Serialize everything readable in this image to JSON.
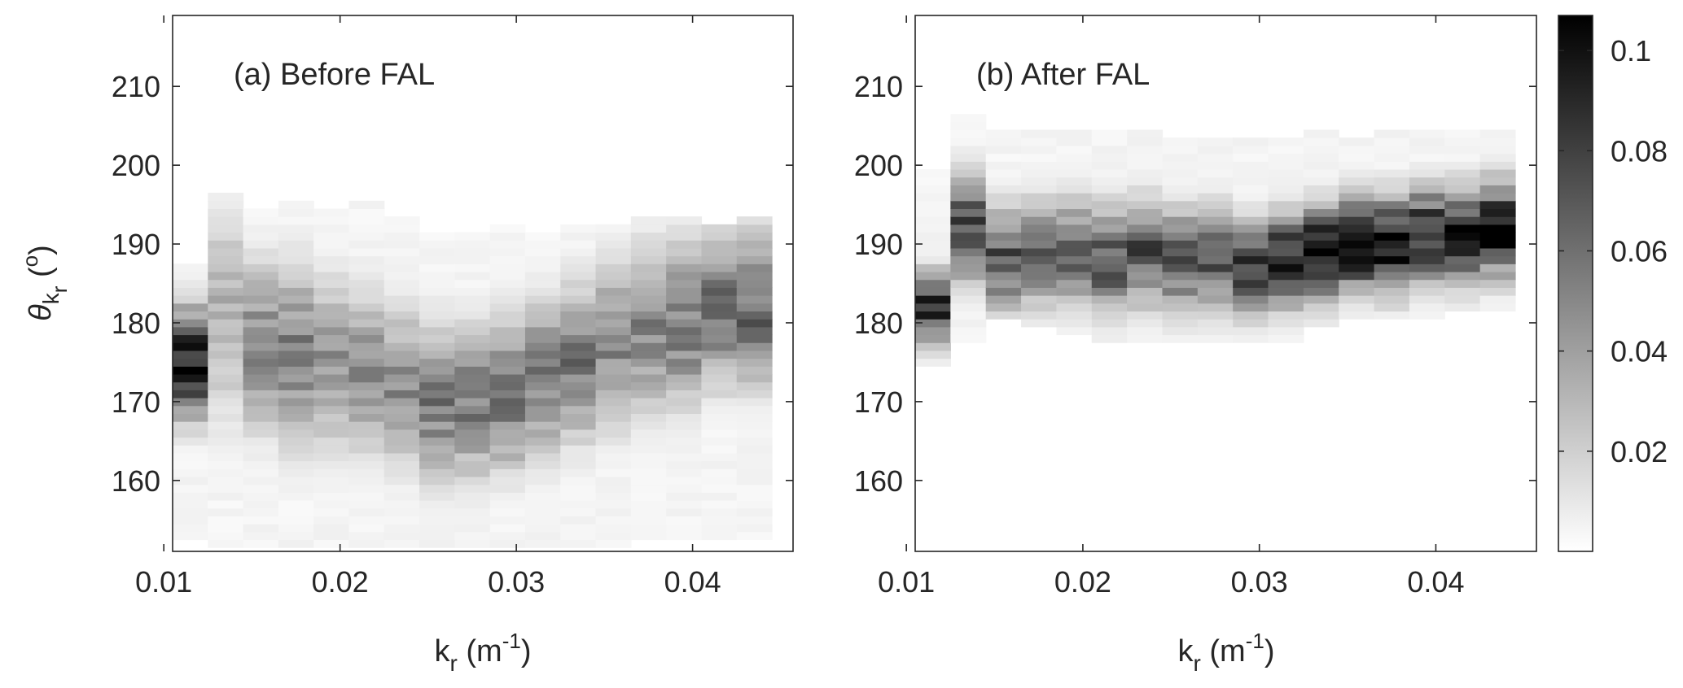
{
  "chart_data": [
    {
      "type": "heatmap",
      "panel_label": "(a) Before FAL",
      "xlabel": {
        "base": "k",
        "sub": "r",
        "unit_open": " (m",
        "unit_sup": "-1",
        "unit_close": ")"
      },
      "ylabel": {
        "base": "θ",
        "sub": "k",
        "subsub": "r",
        "unit_open": " (",
        "unit_sup": "o",
        "unit_close": ")"
      },
      "xlim": [
        0.0105,
        0.0457
      ],
      "ylim": [
        151,
        219
      ],
      "xticks": [
        0.01,
        0.02,
        0.03,
        0.04
      ],
      "xtick_labels": [
        "0.01",
        "0.02",
        "0.03",
        "0.04"
      ],
      "yticks": [
        160,
        170,
        180,
        190,
        200,
        210
      ],
      "ytick_labels": [
        "160",
        "170",
        "180",
        "190",
        "200",
        "210"
      ],
      "x_bins": [
        0.0115,
        0.0135,
        0.0155,
        0.0175,
        0.0195,
        0.0215,
        0.0235,
        0.0255,
        0.0275,
        0.0295,
        0.0315,
        0.0335,
        0.0355,
        0.0375,
        0.0395,
        0.0415,
        0.0435
      ],
      "x_bin_width": 0.002,
      "y_bin_height": 1,
      "ridge": [
        {
          "center": 175,
          "spread": 4.5,
          "peak": 0.105,
          "low": 153,
          "high": 187
        },
        {
          "center": 181,
          "spread": 9.0,
          "peak": 0.032,
          "low": 152,
          "high": 196
        },
        {
          "center": 177,
          "spread": 7.0,
          "peak": 0.052,
          "low": 152,
          "high": 194
        },
        {
          "center": 176,
          "spread": 7.5,
          "peak": 0.052,
          "low": 152,
          "high": 195
        },
        {
          "center": 175,
          "spread": 7.0,
          "peak": 0.045,
          "low": 152,
          "high": 194
        },
        {
          "center": 174,
          "spread": 7.0,
          "peak": 0.045,
          "low": 152,
          "high": 195
        },
        {
          "center": 172,
          "spread": 6.5,
          "peak": 0.048,
          "low": 152,
          "high": 193
        },
        {
          "center": 170,
          "spread": 6.5,
          "peak": 0.055,
          "low": 152,
          "high": 191
        },
        {
          "center": 170,
          "spread": 6.5,
          "peak": 0.055,
          "low": 152,
          "high": 191
        },
        {
          "center": 171,
          "spread": 6.5,
          "peak": 0.058,
          "low": 152,
          "high": 192
        },
        {
          "center": 173,
          "spread": 6.5,
          "peak": 0.055,
          "low": 152,
          "high": 191
        },
        {
          "center": 175,
          "spread": 6.5,
          "peak": 0.055,
          "low": 152,
          "high": 192
        },
        {
          "center": 177,
          "spread": 7.0,
          "peak": 0.05,
          "low": 152,
          "high": 192
        },
        {
          "center": 179,
          "spread": 7.0,
          "peak": 0.05,
          "low": 153,
          "high": 193
        },
        {
          "center": 180,
          "spread": 7.0,
          "peak": 0.055,
          "low": 153,
          "high": 193
        },
        {
          "center": 182,
          "spread": 6.5,
          "peak": 0.06,
          "low": 153,
          "high": 192
        },
        {
          "center": 182,
          "spread": 6.5,
          "peak": 0.062,
          "low": 153,
          "high": 193
        }
      ]
    },
    {
      "type": "heatmap",
      "panel_label": "(b) After FAL",
      "xlabel": {
        "base": "k",
        "sub": "r",
        "unit_open": " (m",
        "unit_sup": "-1",
        "unit_close": ")"
      },
      "xlim": [
        0.0105,
        0.0457
      ],
      "ylim": [
        151,
        219
      ],
      "xticks": [
        0.01,
        0.02,
        0.03,
        0.04
      ],
      "xtick_labels": [
        "0.01",
        "0.02",
        "0.03",
        "0.04"
      ],
      "yticks": [
        160,
        170,
        180,
        190,
        200,
        210
      ],
      "ytick_labels": [
        "160",
        "170",
        "180",
        "190",
        "200",
        "210"
      ],
      "x_bins": [
        0.0115,
        0.0135,
        0.0155,
        0.0175,
        0.0195,
        0.0215,
        0.0235,
        0.0255,
        0.0275,
        0.0295,
        0.0315,
        0.0335,
        0.0355,
        0.0375,
        0.0395,
        0.0415,
        0.0435
      ],
      "x_bin_width": 0.002,
      "y_bin_height": 1,
      "ridge": [
        {
          "center": 182,
          "spread": 3.0,
          "peak": 0.088,
          "low": 175,
          "high": 199
        },
        {
          "center": 192,
          "spread": 4.5,
          "peak": 0.075,
          "low": 178,
          "high": 206
        },
        {
          "center": 188,
          "spread": 4.5,
          "peak": 0.07,
          "low": 181,
          "high": 204
        },
        {
          "center": 189,
          "spread": 4.5,
          "peak": 0.062,
          "low": 180,
          "high": 204
        },
        {
          "center": 189,
          "spread": 4.5,
          "peak": 0.065,
          "low": 179,
          "high": 204
        },
        {
          "center": 188,
          "spread": 4.5,
          "peak": 0.075,
          "low": 178,
          "high": 204
        },
        {
          "center": 189,
          "spread": 4.5,
          "peak": 0.07,
          "low": 178,
          "high": 204
        },
        {
          "center": 188,
          "spread": 4.5,
          "peak": 0.065,
          "low": 178,
          "high": 203
        },
        {
          "center": 188,
          "spread": 4.5,
          "peak": 0.068,
          "low": 178,
          "high": 203
        },
        {
          "center": 187,
          "spread": 4.0,
          "peak": 0.08,
          "low": 178,
          "high": 203
        },
        {
          "center": 188,
          "spread": 4.0,
          "peak": 0.09,
          "low": 178,
          "high": 203
        },
        {
          "center": 189,
          "spread": 4.0,
          "peak": 0.098,
          "low": 180,
          "high": 204
        },
        {
          "center": 190,
          "spread": 4.0,
          "peak": 0.102,
          "low": 181,
          "high": 203
        },
        {
          "center": 190,
          "spread": 4.0,
          "peak": 0.105,
          "low": 181,
          "high": 204
        },
        {
          "center": 191,
          "spread": 4.0,
          "peak": 0.098,
          "low": 181,
          "high": 204
        },
        {
          "center": 191,
          "spread": 4.0,
          "peak": 0.095,
          "low": 182,
          "high": 204
        },
        {
          "center": 192,
          "spread": 4.0,
          "peak": 0.098,
          "low": 182,
          "high": 204
        }
      ]
    }
  ],
  "colorbar": {
    "clim": [
      0,
      0.107
    ],
    "ticks": [
      0.02,
      0.04,
      0.06,
      0.08,
      0.1
    ],
    "tick_labels": [
      "0.02",
      "0.04",
      "0.06",
      "0.08",
      "0.1"
    ],
    "colormap": "gray-reversed",
    "color_low": "#ffffff",
    "color_high": "#000000"
  }
}
